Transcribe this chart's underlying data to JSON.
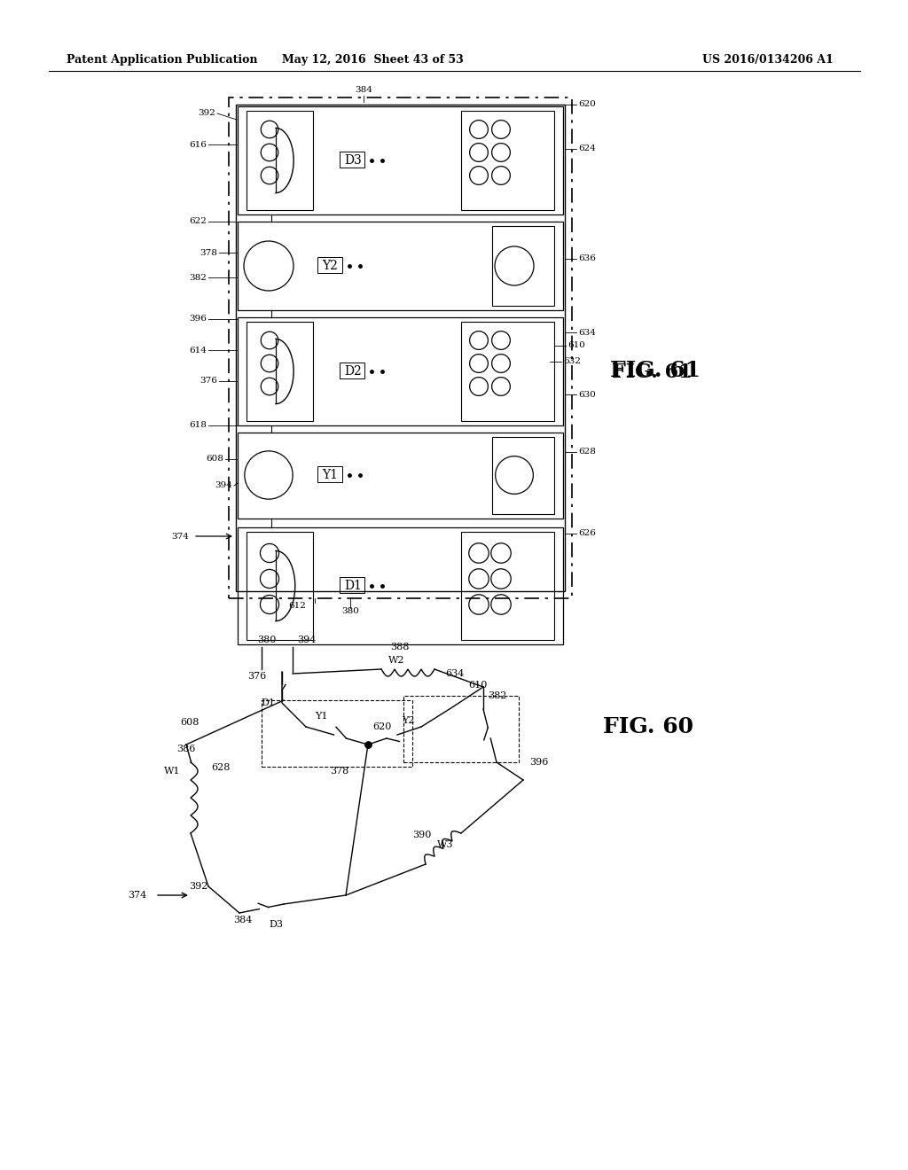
{
  "header_left": "Patent Application Publication",
  "header_mid": "May 12, 2016  Sheet 43 of 53",
  "header_right": "US 2016/0134206 A1",
  "fig61_label": "FIG. 61",
  "fig60_label": "FIG. 60",
  "bg_color": "#ffffff",
  "line_color": "#000000"
}
